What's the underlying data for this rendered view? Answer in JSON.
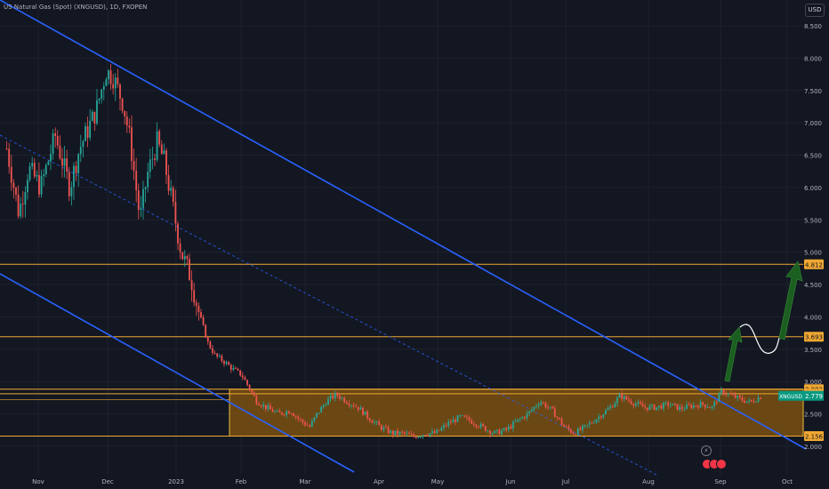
{
  "header": {
    "title": "US Natural Gas (Spot) (XNGUSD), 1D, FXOPEN",
    "currency_button": "USD",
    "bolt_icon": "⚡"
  },
  "colors": {
    "background": "#131722",
    "up": "#26a69a",
    "down": "#ef5350",
    "channel": "#2962ff",
    "level": "#f0a832",
    "range_fill": "#8c5a0e",
    "arrow": "#1b5e20",
    "axis_text": "#b2b5be"
  },
  "chart_data": {
    "type": "candlestick",
    "title": "US Natural Gas (Spot) (XNGUSD), 1D, FXOPEN",
    "symbol": "XNGUSD",
    "last_price": "2.779",
    "y_axis": {
      "scale": "linear",
      "range": [
        1.55,
        8.87
      ],
      "ticks": [
        "8.500",
        "8.000",
        "7.500",
        "7.000",
        "6.500",
        "6.000",
        "5.500",
        "5.000",
        "4.500",
        "4.000",
        "3.500",
        "3.000",
        "2.500",
        "2.000"
      ]
    },
    "x_axis": {
      "labels": [
        "Nov",
        "Dec",
        "2023",
        "Feb",
        "Mar",
        "Apr",
        "May",
        "Jun",
        "Jul",
        "Aug",
        "Sep",
        "Oct"
      ]
    },
    "price_levels": [
      {
        "value": 4.812,
        "label": "4.812"
      },
      {
        "value": 3.693,
        "label": "3.693"
      },
      {
        "value": 2.882,
        "label": "2.882"
      },
      {
        "value": 2.811,
        "label": "2.811"
      },
      {
        "value": 2.156,
        "label": "2.156"
      }
    ],
    "range_box": {
      "top": 2.882,
      "bottom": 2.156
    },
    "close_path": [
      {
        "t": "Oct 19",
        "v": 6.6
      },
      {
        "t": "Oct 24",
        "v": 5.6
      },
      {
        "t": "Oct 28",
        "v": 6.3
      },
      {
        "t": "Nov 2",
        "v": 6.0
      },
      {
        "t": "Nov 8",
        "v": 6.8
      },
      {
        "t": "Nov 14",
        "v": 6.0
      },
      {
        "t": "Nov 18",
        "v": 6.6
      },
      {
        "t": "Nov 25",
        "v": 7.2
      },
      {
        "t": "Nov 29",
        "v": 7.8
      },
      {
        "t": "Dec 2",
        "v": 7.7
      },
      {
        "t": "Dec 6",
        "v": 7.3
      },
      {
        "t": "Dec 9",
        "v": 6.7
      },
      {
        "t": "Dec 13",
        "v": 5.5
      },
      {
        "t": "Dec 16",
        "v": 6.2
      },
      {
        "t": "Dec 20",
        "v": 6.7
      },
      {
        "t": "Dec 23",
        "v": 6.4
      },
      {
        "t": "Dec 26",
        "v": 5.8
      },
      {
        "t": "Dec 30",
        "v": 5.0
      },
      {
        "t": "Jan 3",
        "v": 4.6
      },
      {
        "t": "Jan 6",
        "v": 4.1
      },
      {
        "t": "Jan 10",
        "v": 3.6
      },
      {
        "t": "Jan 13",
        "v": 3.4
      },
      {
        "t": "Jan 17",
        "v": 3.3
      },
      {
        "t": "Jan 20",
        "v": 3.2
      },
      {
        "t": "Jan 24",
        "v": 3.1
      },
      {
        "t": "Jan 27",
        "v": 2.9
      },
      {
        "t": "Jan 30",
        "v": 2.7
      },
      {
        "t": "Feb 3",
        "v": 2.6
      },
      {
        "t": "Feb 8",
        "v": 2.5
      },
      {
        "t": "Feb 13",
        "v": 2.55
      },
      {
        "t": "Feb 17",
        "v": 2.4
      },
      {
        "t": "Feb 21",
        "v": 2.3
      },
      {
        "t": "Feb 24",
        "v": 2.5
      },
      {
        "t": "Feb 28",
        "v": 2.7
      },
      {
        "t": "Mar 4",
        "v": 2.8
      },
      {
        "t": "Mar 8",
        "v": 2.7
      },
      {
        "t": "Mar 13",
        "v": 2.6
      },
      {
        "t": "Mar 17",
        "v": 2.45
      },
      {
        "t": "Mar 22",
        "v": 2.3
      },
      {
        "t": "Mar 27",
        "v": 2.2
      },
      {
        "t": "Mar 31",
        "v": 2.2
      },
      {
        "t": "Apr 5",
        "v": 2.15
      },
      {
        "t": "Apr 10",
        "v": 2.2
      },
      {
        "t": "Apr 14",
        "v": 2.2
      },
      {
        "t": "Apr 19",
        "v": 2.35
      },
      {
        "t": "Apr 24",
        "v": 2.45
      },
      {
        "t": "Apr 28",
        "v": 2.4
      },
      {
        "t": "May 3",
        "v": 2.3
      },
      {
        "t": "May 8",
        "v": 2.2
      },
      {
        "t": "May 13",
        "v": 2.25
      },
      {
        "t": "May 18",
        "v": 2.4
      },
      {
        "t": "May 22",
        "v": 2.5
      },
      {
        "t": "May 27",
        "v": 2.7
      },
      {
        "t": "Jun 1",
        "v": 2.55
      },
      {
        "t": "Jun 6",
        "v": 2.3
      },
      {
        "t": "Jun 10",
        "v": 2.2
      },
      {
        "t": "Jun 15",
        "v": 2.3
      },
      {
        "t": "Jun 20",
        "v": 2.45
      },
      {
        "t": "Jun 25",
        "v": 2.6
      },
      {
        "t": "Jun 29",
        "v": 2.78
      },
      {
        "t": "Jul 4",
        "v": 2.68
      },
      {
        "t": "Jul 9",
        "v": 2.6
      },
      {
        "t": "Jul 14",
        "v": 2.6
      },
      {
        "t": "Jul 19",
        "v": 2.65
      },
      {
        "t": "Jul 24",
        "v": 2.58
      },
      {
        "t": "Jul 28",
        "v": 2.62
      },
      {
        "t": "Aug 2",
        "v": 2.65
      },
      {
        "t": "Aug 6",
        "v": 2.6
      },
      {
        "t": "Aug 10",
        "v": 2.85
      },
      {
        "t": "Aug 14",
        "v": 2.78
      },
      {
        "t": "Aug 18",
        "v": 2.72
      },
      {
        "t": "Aug 22",
        "v": 2.68
      },
      {
        "t": "Aug 25",
        "v": 2.75
      },
      {
        "t": "Aug 27",
        "v": 2.779
      }
    ]
  }
}
